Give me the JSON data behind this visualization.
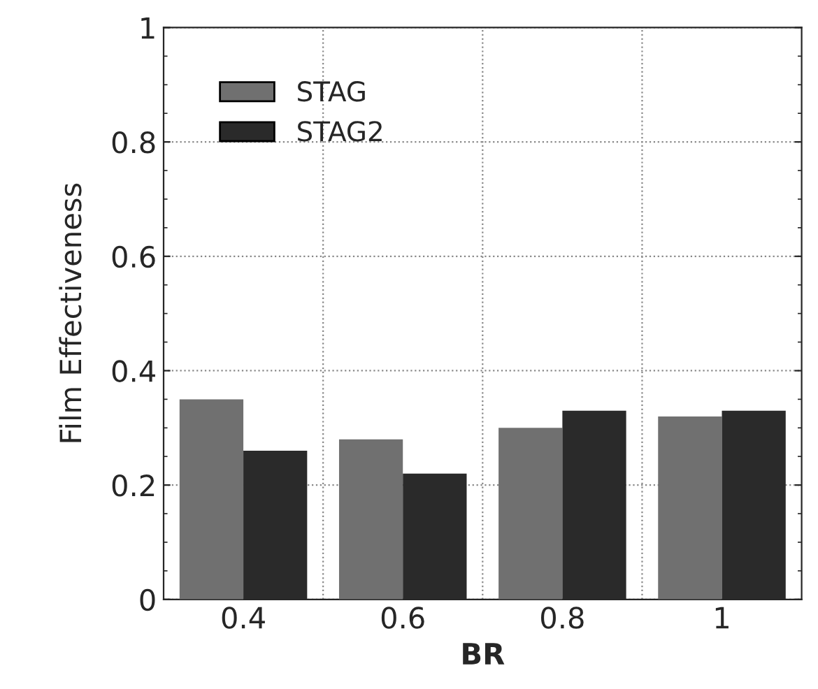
{
  "chart_data": {
    "type": "bar",
    "xlabel": "BR",
    "ylabel": "Film Effectiveness",
    "categories": [
      "0.4",
      "0.6",
      "0.8",
      "1"
    ],
    "series": [
      {
        "name": "STAG",
        "color": "#707070",
        "values": [
          0.35,
          0.28,
          0.3,
          0.32
        ]
      },
      {
        "name": "STAG2",
        "color": "#2a2a2a",
        "values": [
          0.26,
          0.22,
          0.33,
          0.33
        ]
      }
    ],
    "ylim": [
      0,
      1
    ],
    "yticks": [
      0,
      0.2,
      0.4,
      0.6,
      0.8,
      1
    ],
    "grid": true,
    "legend": "top left"
  }
}
